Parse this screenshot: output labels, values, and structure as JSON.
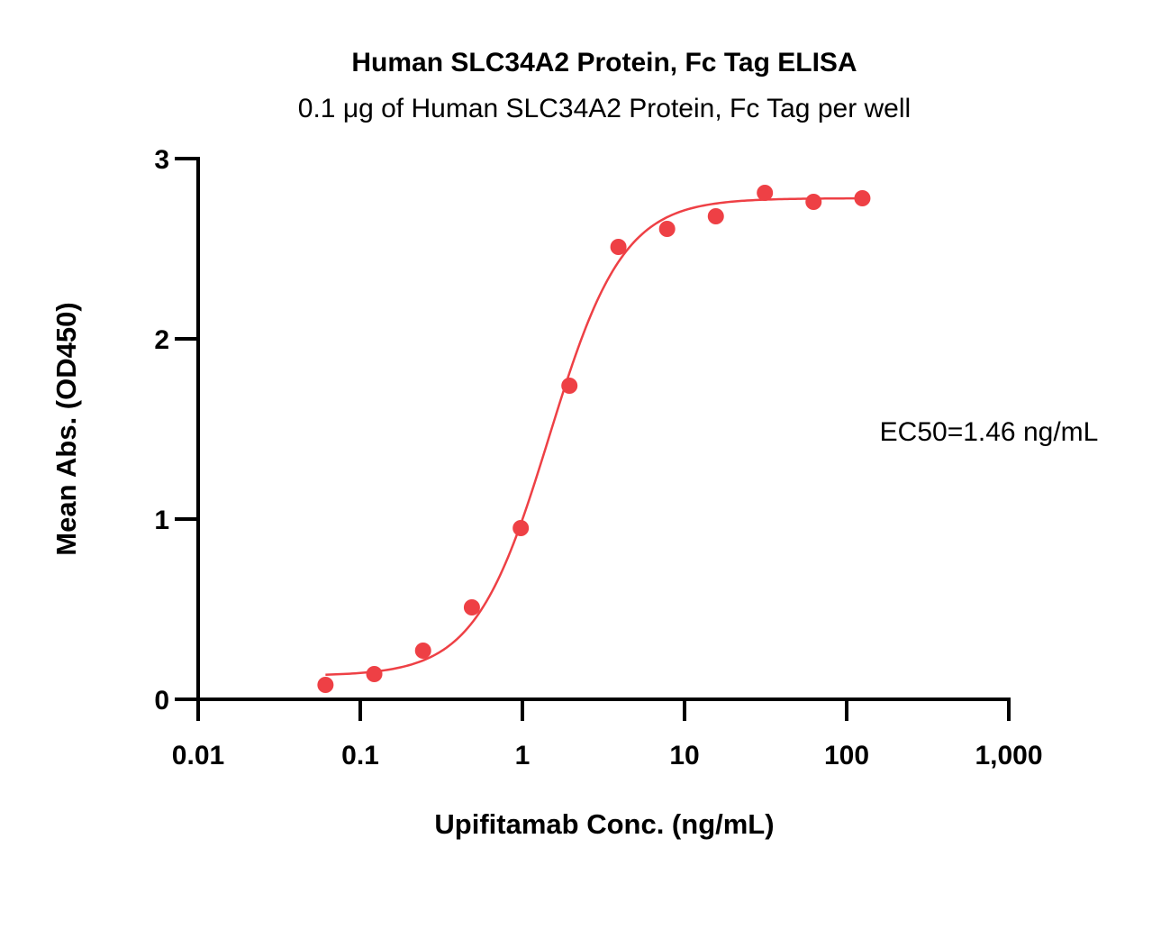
{
  "chart_data": {
    "type": "scatter",
    "title": "Human SLC34A2 Protein, Fc Tag ELISA",
    "subtitle": "0.1 μg of Human SLC34A2 Protein, Fc Tag per well",
    "xlabel": "Upifitamab Conc. (ng/mL)",
    "ylabel": "Mean Abs. (OD450)",
    "x_scale": "log",
    "xlim": [
      0.01,
      1000
    ],
    "ylim": [
      0,
      3
    ],
    "x_ticks": [
      0.01,
      0.1,
      1,
      10,
      100,
      1000
    ],
    "x_tick_labels": [
      "0.01",
      "0.1",
      "1",
      "10",
      "100",
      "1,000"
    ],
    "y_ticks": [
      0,
      1,
      2,
      3
    ],
    "y_tick_labels": [
      "0",
      "1",
      "2",
      "3"
    ],
    "grid": false,
    "series": [
      {
        "color": "#ee4045",
        "points": [
          {
            "x": 0.061,
            "y": 0.08
          },
          {
            "x": 0.122,
            "y": 0.14
          },
          {
            "x": 0.244,
            "y": 0.27
          },
          {
            "x": 0.488,
            "y": 0.51
          },
          {
            "x": 0.977,
            "y": 0.95
          },
          {
            "x": 1.95,
            "y": 1.74
          },
          {
            "x": 3.91,
            "y": 2.51
          },
          {
            "x": 7.81,
            "y": 2.61
          },
          {
            "x": 15.6,
            "y": 2.68
          },
          {
            "x": 31.3,
            "y": 2.81
          },
          {
            "x": 62.5,
            "y": 2.76
          },
          {
            "x": 125,
            "y": 2.78
          }
        ],
        "fit": {
          "model": "4PL",
          "bottom": 0.13,
          "top": 2.78,
          "ec50": 1.46,
          "hill": 1.9,
          "x_range": [
            0.061,
            125
          ]
        }
      }
    ],
    "annotations": [
      {
        "text": "EC50=1.46 ng/mL"
      }
    ]
  }
}
